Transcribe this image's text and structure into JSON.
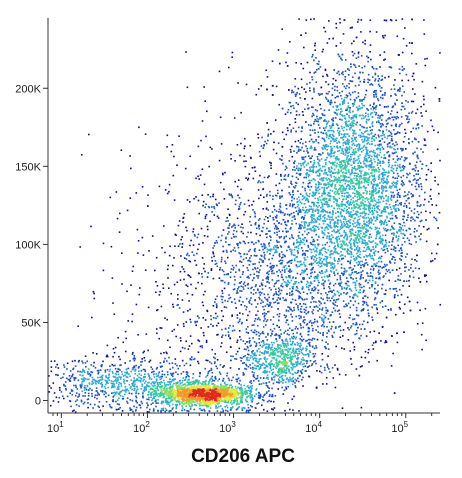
{
  "chart_data": {
    "type": "scatter",
    "title": "",
    "xlabel": "CD206 APC",
    "ylabel": "",
    "x_scale": "log",
    "xlim": [
      7,
      250000
    ],
    "ylim": [
      -8000,
      245000
    ],
    "x_ticks": [
      {
        "value": 10,
        "base": "10",
        "exp": "1"
      },
      {
        "value": 100,
        "base": "10",
        "exp": "2"
      },
      {
        "value": 1000,
        "base": "10",
        "exp": "3"
      },
      {
        "value": 10000,
        "base": "10",
        "exp": "4"
      },
      {
        "value": 100000,
        "base": "10",
        "exp": "5"
      }
    ],
    "y_ticks": [
      {
        "value": 0,
        "label": "0"
      },
      {
        "value": 50000,
        "label": "50K"
      },
      {
        "value": 100000,
        "label": "100K"
      },
      {
        "value": 150000,
        "label": "150K"
      },
      {
        "value": 200000,
        "label": "200K"
      }
    ],
    "grid": false,
    "legend": "none",
    "colormap": [
      "#0a0a9e",
      "#1b4fd8",
      "#2aa8d6",
      "#35c9a0",
      "#86e05a",
      "#e6e83a",
      "#f59a22",
      "#e5261b"
    ],
    "populations": [
      {
        "x_center": 25000,
        "y_center": 135000,
        "x_spread_decades": 0.42,
        "y_spread": 42000,
        "weight": 0.48
      },
      {
        "x_center": 450,
        "y_center": 4500,
        "x_spread_decades": 0.28,
        "y_spread": 3500,
        "weight": 0.16
      },
      {
        "x_center": 3500,
        "y_center": 27000,
        "x_spread_decades": 0.22,
        "y_spread": 9000,
        "weight": 0.07
      },
      {
        "x_center": 60,
        "y_center": 12000,
        "x_spread_decades": 0.55,
        "y_spread": 8000,
        "weight": 0.09
      },
      {
        "x_center": 4000,
        "y_center": 85000,
        "x_spread_decades": 0.45,
        "y_spread": 30000,
        "weight": 0.12
      },
      {
        "x_center": 600,
        "y_center": 70000,
        "x_spread_decades": 0.6,
        "y_spread": 55000,
        "weight": 0.08
      }
    ]
  }
}
